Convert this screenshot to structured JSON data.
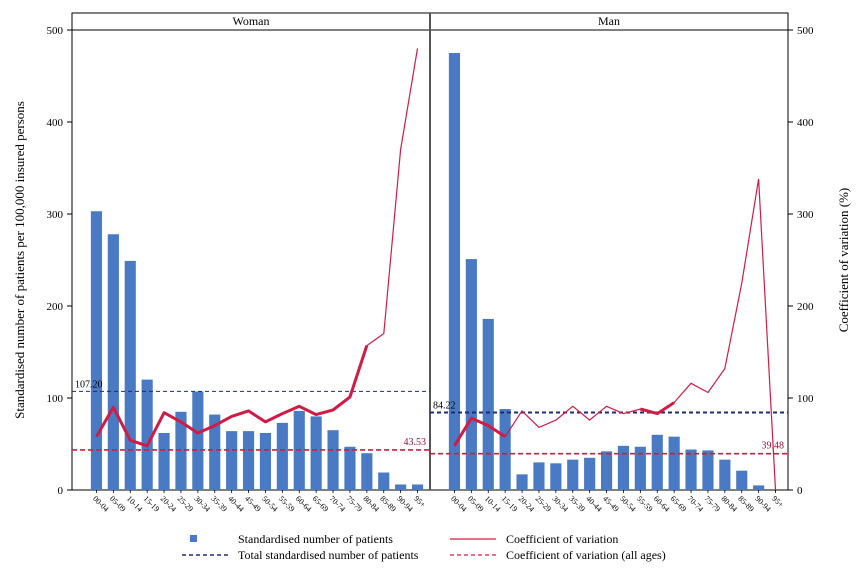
{
  "chart_data": {
    "type": "bar",
    "ylabel_left": "Standardised number of patients per 100,000 insured persons",
    "ylabel_right": "Coefficient of variation (%)",
    "ylim": [
      0,
      500
    ],
    "yticks": [
      "0",
      "100",
      "200",
      "300",
      "400",
      "500"
    ],
    "categories": [
      "00-04",
      "05-09",
      "10-14",
      "15-19",
      "20-24",
      "25-29",
      "30-34",
      "35-39",
      "40-44",
      "45-49",
      "50-54",
      "55-59",
      "60-64",
      "65-69",
      "70-74",
      "75-79",
      "80-84",
      "85-89",
      "90-94",
      "95+"
    ],
    "legend": {
      "bar": "Standardised number of patients",
      "total": "Total standardised number of patients",
      "cv": "Coefficient of variation",
      "cv_all": "Coefficient of variation (all ages)"
    },
    "colors": {
      "bar": "#4a7ac4",
      "total": "#1f2a7a",
      "cv": "#d01c44"
    },
    "panels": [
      {
        "title": "Woman",
        "bars": [
          303,
          278,
          249,
          120,
          62,
          85,
          107,
          82,
          64,
          64,
          62,
          73,
          86,
          80,
          65,
          47,
          40,
          19,
          6,
          6
        ],
        "total": 107.2,
        "total_label": "107.20",
        "cv": [
          58,
          90,
          54,
          48,
          84,
          74,
          62,
          70,
          80,
          86,
          74,
          83,
          91,
          82,
          87,
          101,
          157,
          170,
          370,
          480
        ],
        "cv_bold_until": 16,
        "cv_all": 43.53,
        "cv_all_label": "43.53"
      },
      {
        "title": "Man",
        "bars": [
          475,
          251,
          186,
          88,
          17,
          30,
          29,
          33,
          35,
          42,
          48,
          47,
          60,
          58,
          44,
          43,
          33,
          21,
          5,
          0
        ],
        "total": 84.22,
        "total_label": "84.22",
        "cv": [
          48,
          78,
          70,
          58,
          86,
          68,
          76,
          91,
          76,
          91,
          83,
          88,
          83,
          95,
          116,
          106,
          132,
          225,
          338,
          0
        ],
        "cv_bold_until": 3,
        "cv_bold_from": 11,
        "cv_bold_to": 13,
        "cv_all": 39.48,
        "cv_all_label": "39.48"
      }
    ]
  }
}
